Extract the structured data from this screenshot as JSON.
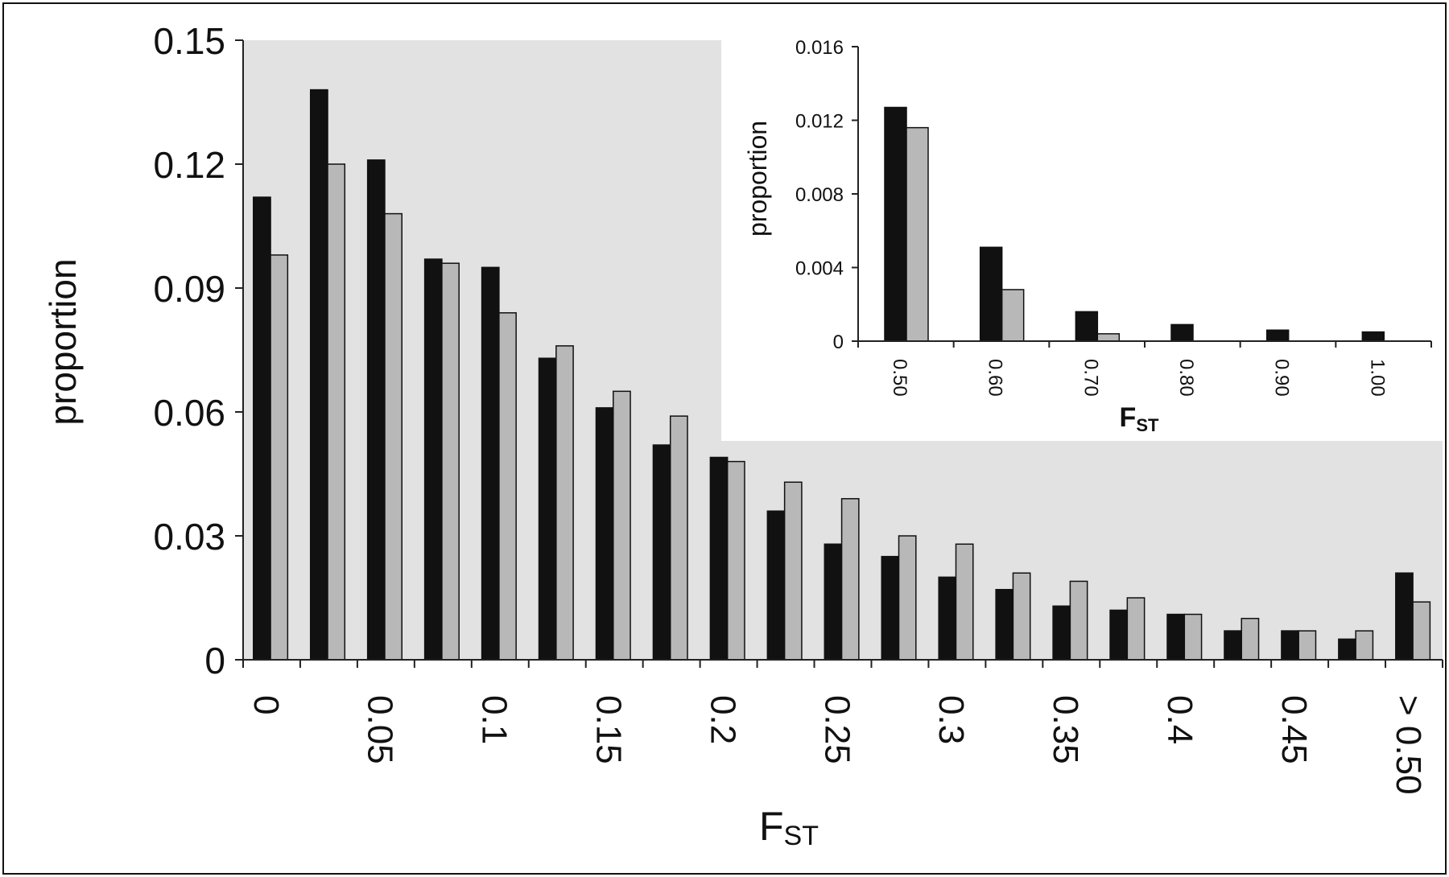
{
  "chart_data": [
    {
      "type": "bar",
      "ylabel": "proportion",
      "xlabel_main": "F",
      "xlabel_sub": "ST",
      "ylim": [
        0,
        0.15
      ],
      "yticks": [
        "0",
        "0.03",
        "0.06",
        "0.09",
        "0.12",
        "0.15"
      ],
      "xtick_labels": [
        "0",
        "0.05",
        "0.1",
        "0.15",
        "0.2",
        "0.25",
        "0.3",
        "0.35",
        "0.4",
        "0.45",
        "> 0.50"
      ],
      "grid": false,
      "legend": "none",
      "series": [
        {
          "color": "#111111",
          "values": [
            0.112,
            0.138,
            0.121,
            0.097,
            0.095,
            0.073,
            0.061,
            0.052,
            0.049,
            0.036,
            0.028,
            0.025,
            0.02,
            0.017,
            0.013,
            0.012,
            0.011,
            0.007,
            0.007,
            0.005,
            0.021
          ]
        },
        {
          "color": "#b8b8b8",
          "values": [
            0.098,
            0.12,
            0.108,
            0.096,
            0.084,
            0.076,
            0.065,
            0.059,
            0.048,
            0.043,
            0.039,
            0.03,
            0.028,
            0.021,
            0.019,
            0.015,
            0.011,
            0.01,
            0.007,
            0.007,
            0.014
          ]
        }
      ]
    },
    {
      "type": "bar",
      "ylabel": "proportion",
      "xlabel_main": "F",
      "xlabel_sub": "ST",
      "ylim": [
        0,
        0.016
      ],
      "yticks": [
        "0",
        "0.004",
        "0.008",
        "0.012",
        "0.016"
      ],
      "categories": [
        "0.50",
        "0.60",
        "0.70",
        "0.80",
        "0.90",
        "1.00"
      ],
      "grid": false,
      "legend": "none",
      "series": [
        {
          "color": "#111111",
          "values": [
            0.0127,
            0.0051,
            0.0016,
            0.0009,
            0.0006,
            0.0005
          ]
        },
        {
          "color": "#b8b8b8",
          "values": [
            0.0116,
            0.0028,
            0.0004,
            0,
            0,
            0
          ]
        }
      ]
    }
  ]
}
